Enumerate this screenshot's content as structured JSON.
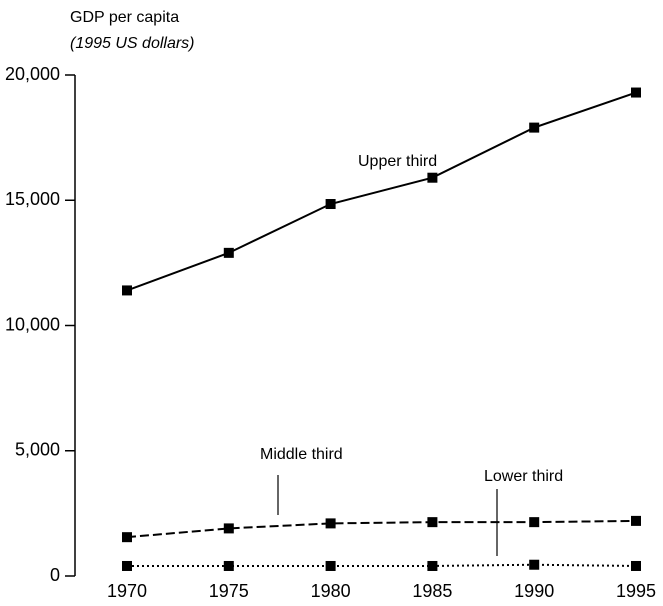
{
  "chart_data": {
    "type": "line",
    "ylabel": [
      "GDP per capita",
      "(1995 US dollars)"
    ],
    "x": [
      1970,
      1975,
      1980,
      1985,
      1990,
      1995
    ],
    "series": [
      {
        "name": "Upper third",
        "color": "#000000",
        "line_style": "solid",
        "values": [
          11400,
          12900,
          14850,
          15900,
          17900,
          19300
        ]
      },
      {
        "name": "Middle third",
        "color": "#000000",
        "line_style": "dashed",
        "values": [
          1550,
          1900,
          2100,
          2150,
          2150,
          2200
        ]
      },
      {
        "name": "Lower third",
        "color": "#000000",
        "line_style": "dotted",
        "values": [
          400,
          400,
          400,
          400,
          450,
          400
        ]
      }
    ],
    "xlim": [
      1970,
      1995
    ],
    "xticks": [
      1970,
      1975,
      1980,
      1985,
      1990,
      1995
    ],
    "ylim": [
      0,
      20000
    ],
    "yticks": [
      {
        "value": 0,
        "label": "0"
      },
      {
        "value": 5000,
        "label": "5,000"
      },
      {
        "value": 10000,
        "label": "10,000"
      },
      {
        "value": 15000,
        "label": "15,000"
      },
      {
        "value": 20000,
        "label": "20,000"
      }
    ],
    "grid": false
  }
}
